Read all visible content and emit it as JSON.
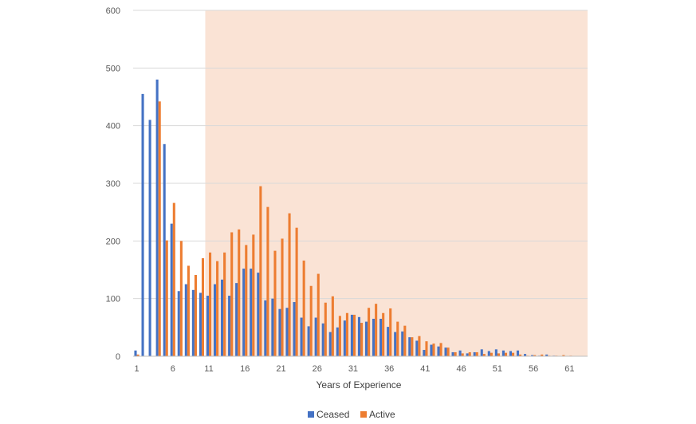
{
  "chart_data": {
    "type": "bar",
    "title": "",
    "xlabel": "Years of Experience",
    "ylabel": "",
    "ylim": [
      0,
      600
    ],
    "yticks": [
      0,
      100,
      200,
      300,
      400,
      500,
      600
    ],
    "x": [
      1,
      2,
      3,
      4,
      5,
      6,
      7,
      8,
      9,
      10,
      11,
      12,
      13,
      14,
      15,
      16,
      17,
      18,
      19,
      20,
      21,
      22,
      23,
      24,
      25,
      26,
      27,
      28,
      29,
      30,
      31,
      32,
      33,
      34,
      35,
      36,
      37,
      38,
      39,
      40,
      41,
      42,
      43,
      44,
      45,
      46,
      47,
      48,
      49,
      50,
      51,
      52,
      53,
      54,
      55,
      56,
      57,
      58,
      59,
      60,
      61,
      62,
      63
    ],
    "xticks": [
      1,
      6,
      11,
      16,
      21,
      26,
      31,
      36,
      41,
      46,
      51,
      56,
      61
    ],
    "grid": true,
    "legend_position": "bottom",
    "highlight_region": {
      "x_from": 11,
      "x_to": 63,
      "color": "#FAE3D5"
    },
    "series": [
      {
        "name": "Ceased",
        "color": "#4472C4",
        "values": [
          10,
          455,
          410,
          480,
          368,
          230,
          113,
          125,
          115,
          110,
          105,
          125,
          133,
          105,
          127,
          152,
          152,
          145,
          97,
          100,
          82,
          84,
          94,
          67,
          52,
          67,
          57,
          42,
          50,
          62,
          72,
          68,
          60,
          65,
          65,
          51,
          42,
          43,
          33,
          27,
          11,
          20,
          17,
          15,
          7,
          10,
          5,
          7,
          12,
          9,
          12,
          10,
          9,
          10,
          4,
          2,
          1,
          3,
          1,
          0,
          0,
          0,
          0
        ]
      },
      {
        "name": "Active",
        "color": "#ED7D31",
        "values": [
          3,
          0,
          0,
          442,
          201,
          266,
          200,
          157,
          141,
          170,
          180,
          165,
          180,
          215,
          220,
          193,
          211,
          295,
          259,
          183,
          204,
          248,
          223,
          166,
          122,
          143,
          93,
          104,
          70,
          75,
          72,
          58,
          84,
          91,
          75,
          83,
          60,
          53,
          33,
          35,
          26,
          22,
          23,
          15,
          7,
          5,
          7,
          7,
          4,
          6,
          5,
          6,
          6,
          3,
          1,
          2,
          3,
          1,
          1,
          2,
          1,
          0,
          0
        ]
      }
    ]
  }
}
